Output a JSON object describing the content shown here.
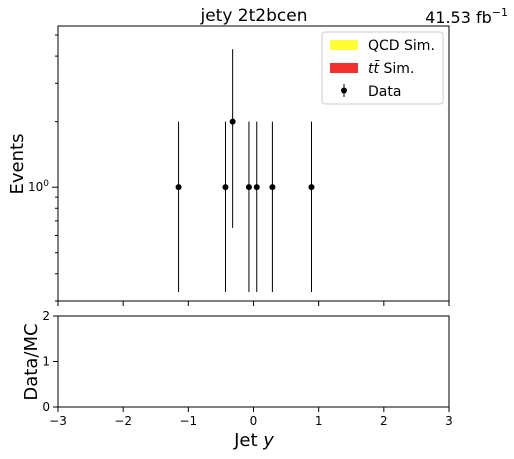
{
  "chart_data": [
    {
      "type": "scatter",
      "title": "jety  2t2bcen",
      "lumi": "41.53 fb",
      "lumi_exp": "−1",
      "xlabel": "",
      "ylabel": "Events",
      "y_scale": "log",
      "y_tick_labels": [
        {
          "value": 1,
          "base": "10",
          "exp": "0"
        }
      ],
      "xlim": [
        -3,
        3
      ],
      "ylim": [
        0.3,
        5.5
      ],
      "grid": false,
      "legend_position": "top-right",
      "legend": [
        {
          "text": "QCD Sim.",
          "color": "#ffff33",
          "kind": "patch"
        },
        {
          "text_main": "t",
          "text_bar": "t̄",
          "text_rest": " Sim.",
          "color": "#f23030",
          "kind": "patch"
        },
        {
          "text": "Data",
          "color": "#000000",
          "kind": "errorbar"
        }
      ],
      "series": [
        {
          "name": "Data",
          "points": [
            {
              "x": -1.15,
              "y": 1,
              "ylow": 0.33,
              "yhigh": 2.0
            },
            {
              "x": -0.43,
              "y": 1,
              "ylow": 0.33,
              "yhigh": 2.0
            },
            {
              "x": -0.32,
              "y": 2,
              "ylow": 0.65,
              "yhigh": 4.3
            },
            {
              "x": -0.07,
              "y": 1,
              "ylow": 0.33,
              "yhigh": 2.0
            },
            {
              "x": 0.05,
              "y": 1,
              "ylow": 0.33,
              "yhigh": 2.0
            },
            {
              "x": 0.29,
              "y": 1,
              "ylow": 0.33,
              "yhigh": 2.0
            },
            {
              "x": 0.89,
              "y": 1,
              "ylow": 0.33,
              "yhigh": 2.0
            }
          ]
        }
      ]
    },
    {
      "type": "scatter",
      "xlabel_main": "Jet ",
      "xlabel_var": "y",
      "ylabel": "Data/MC",
      "xlim": [
        -3,
        3
      ],
      "ylim": [
        0,
        2
      ],
      "x_ticks": [
        "−3",
        "−2",
        "−1",
        "0",
        "1",
        "2",
        "3"
      ],
      "y_ticks": [
        "0",
        "1",
        "2"
      ],
      "grid": false,
      "series": []
    }
  ]
}
